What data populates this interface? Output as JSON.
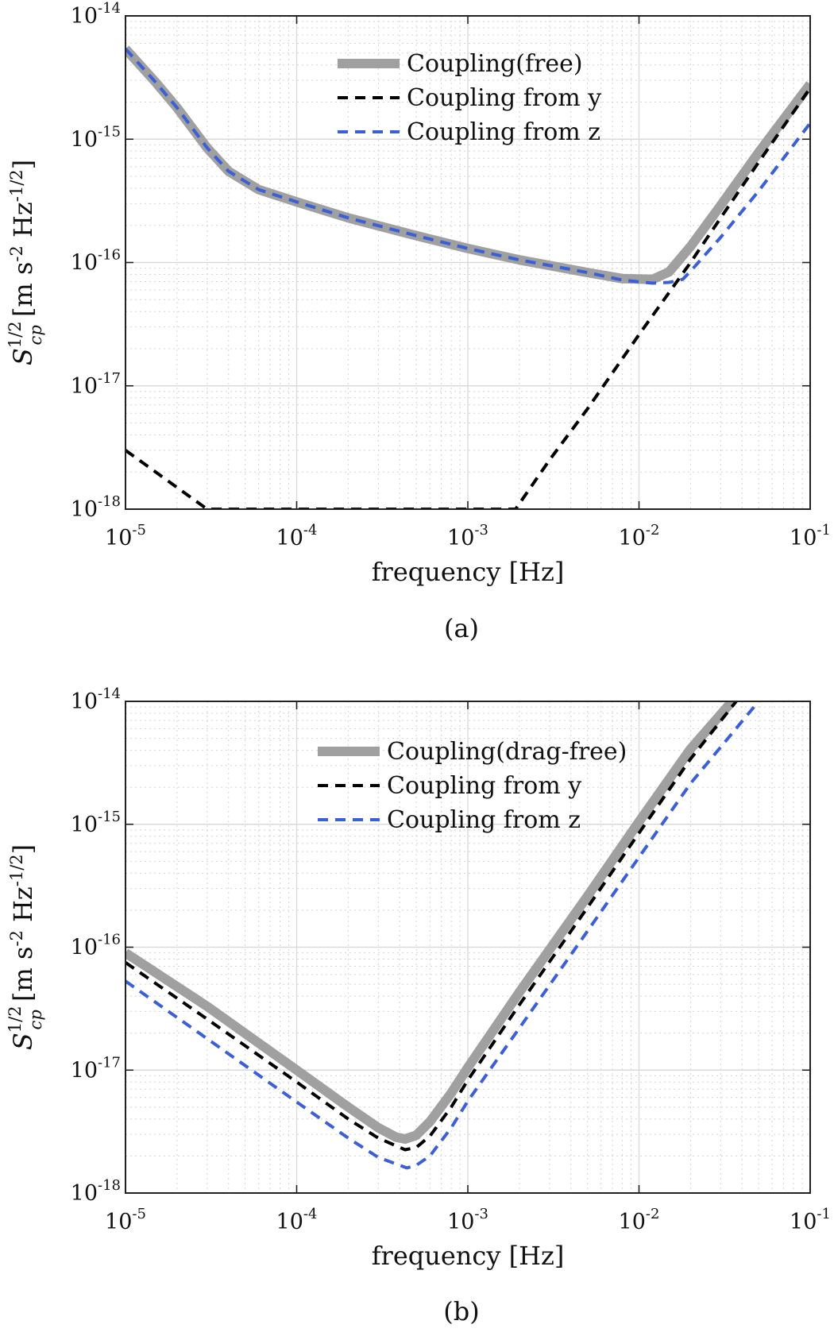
{
  "chart_data": [
    {
      "type": "line",
      "panel_label": "(a)",
      "xlabel": "frequency [Hz]",
      "ylabel": "S_cp^{1/2} [m s^-2 Hz^-1/2]",
      "x_scale": "log",
      "y_scale": "log",
      "xlim": [
        1e-05,
        0.1
      ],
      "ylim": [
        1e-18,
        1e-14
      ],
      "x_tick_labels": [
        {
          "base": "10",
          "exp": "-5"
        },
        {
          "base": "10",
          "exp": "-4"
        },
        {
          "base": "10",
          "exp": "-3"
        },
        {
          "base": "10",
          "exp": "-2"
        },
        {
          "base": "10",
          "exp": "-1"
        }
      ],
      "y_tick_labels": [
        {
          "base": "10",
          "exp": "-18"
        },
        {
          "base": "10",
          "exp": "-17"
        },
        {
          "base": "10",
          "exp": "-16"
        },
        {
          "base": "10",
          "exp": "-15"
        },
        {
          "base": "10",
          "exp": "-14"
        }
      ],
      "grid": true,
      "minor_grid": true,
      "legend_position": "top-center",
      "series": [
        {
          "name": "Coupling(free)",
          "style": "solid",
          "color": "#a0a0a0",
          "x": [
            1e-05,
            1.5e-05,
            2e-05,
            3e-05,
            4e-05,
            6e-05,
            0.0001,
            0.0002,
            0.0005,
            0.001,
            0.002,
            0.005,
            0.008,
            0.012,
            0.015,
            0.02,
            0.03,
            0.05,
            0.1
          ],
          "y": [
            5.4e-15,
            2.9e-15,
            1.8e-15,
            8.5e-16,
            5.5e-16,
            3.9e-16,
            3.1e-16,
            2.3e-16,
            1.65e-16,
            1.3e-16,
            1.05e-16,
            8.3e-17,
            7.4e-17,
            7.3e-17,
            8.4e-17,
            1.35e-16,
            2.9e-16,
            7.8e-16,
            2.8e-15
          ]
        },
        {
          "name": "Coupling from y",
          "style": "dashed",
          "color": "#000000",
          "x": [
            1e-05,
            2e-05,
            3e-05,
            0.0019,
            0.003,
            0.005,
            0.01,
            0.02,
            0.03,
            0.05,
            0.1
          ],
          "y": [
            3e-18,
            1.5e-18,
            1e-18,
            1e-18,
            2.5e-18,
            6.5e-18,
            2.6e-17,
            1e-16,
            2.3e-16,
            6.5e-16,
            2.6e-15
          ]
        },
        {
          "name": "Coupling from z",
          "style": "dashed",
          "color": "#3b5fd6",
          "x": [
            1e-05,
            1.5e-05,
            2e-05,
            3e-05,
            4e-05,
            6e-05,
            0.0001,
            0.0002,
            0.0005,
            0.001,
            0.002,
            0.005,
            0.008,
            0.012,
            0.015,
            0.018,
            0.02,
            0.03,
            0.05,
            0.1
          ],
          "y": [
            5.4e-15,
            2.9e-15,
            1.8e-15,
            8.5e-16,
            5.5e-16,
            3.9e-16,
            3.1e-16,
            2.3e-16,
            1.65e-16,
            1.3e-16,
            1.05e-16,
            8.3e-17,
            7.2e-17,
            6.8e-17,
            6.9e-17,
            7.3e-17,
            8.5e-17,
            1.6e-16,
            3.8e-16,
            1.35e-15
          ]
        }
      ]
    },
    {
      "type": "line",
      "panel_label": "(b)",
      "xlabel": "frequency [Hz]",
      "ylabel": "S_cp^{1/2} [m s^-2 Hz^-1/2]",
      "x_scale": "log",
      "y_scale": "log",
      "xlim": [
        1e-05,
        0.1
      ],
      "ylim": [
        1e-18,
        1e-14
      ],
      "x_tick_labels": [
        {
          "base": "10",
          "exp": "-5"
        },
        {
          "base": "10",
          "exp": "-4"
        },
        {
          "base": "10",
          "exp": "-3"
        },
        {
          "base": "10",
          "exp": "-2"
        },
        {
          "base": "10",
          "exp": "-1"
        }
      ],
      "y_tick_labels": [
        {
          "base": "10",
          "exp": "-18"
        },
        {
          "base": "10",
          "exp": "-17"
        },
        {
          "base": "10",
          "exp": "-16"
        },
        {
          "base": "10",
          "exp": "-15"
        },
        {
          "base": "10",
          "exp": "-14"
        }
      ],
      "grid": true,
      "minor_grid": true,
      "legend_position": "top-center",
      "series": [
        {
          "name": "Coupling(drag-free)",
          "style": "solid",
          "color": "#a0a0a0",
          "x": [
            1e-05,
            3e-05,
            0.0001,
            0.0002,
            0.0003,
            0.00038,
            0.00043,
            0.0005,
            0.0006,
            0.0008,
            0.001,
            0.002,
            0.005,
            0.01,
            0.02,
            0.035
          ],
          "y": [
            9e-17,
            3.3e-17,
            1e-17,
            5e-18,
            3.4e-18,
            2.85e-18,
            2.75e-18,
            2.95e-18,
            3.8e-18,
            6.5e-18,
            1.05e-17,
            4.3e-17,
            2.6e-16,
            1.05e-15,
            4.1e-15,
            1e-14
          ]
        },
        {
          "name": "Coupling from y",
          "style": "dashed",
          "color": "#000000",
          "x": [
            1e-05,
            3e-05,
            0.0001,
            0.0002,
            0.0003,
            0.00043,
            0.0005,
            0.0006,
            0.0008,
            0.001,
            0.002,
            0.005,
            0.01,
            0.02,
            0.037
          ],
          "y": [
            7.5e-17,
            2.6e-17,
            8e-18,
            4e-18,
            2.8e-18,
            2.25e-18,
            2.35e-18,
            2.9e-18,
            5e-18,
            8.3e-18,
            3.4e-17,
            2.1e-16,
            8.5e-16,
            3.4e-15,
            1e-14
          ]
        },
        {
          "name": "Coupling from z",
          "style": "dashed",
          "color": "#3b5fd6",
          "x": [
            1e-05,
            3e-05,
            0.0001,
            0.0002,
            0.0003,
            0.00044,
            0.0005,
            0.0006,
            0.0008,
            0.001,
            0.002,
            0.005,
            0.01,
            0.02,
            0.05
          ],
          "y": [
            5.3e-17,
            1.8e-17,
            5.5e-18,
            2.8e-18,
            1.95e-18,
            1.6e-18,
            1.68e-18,
            2e-18,
            3.4e-18,
            5.6e-18,
            2.2e-17,
            1.35e-16,
            5.4e-16,
            2.15e-15,
            1e-14
          ]
        }
      ]
    }
  ]
}
